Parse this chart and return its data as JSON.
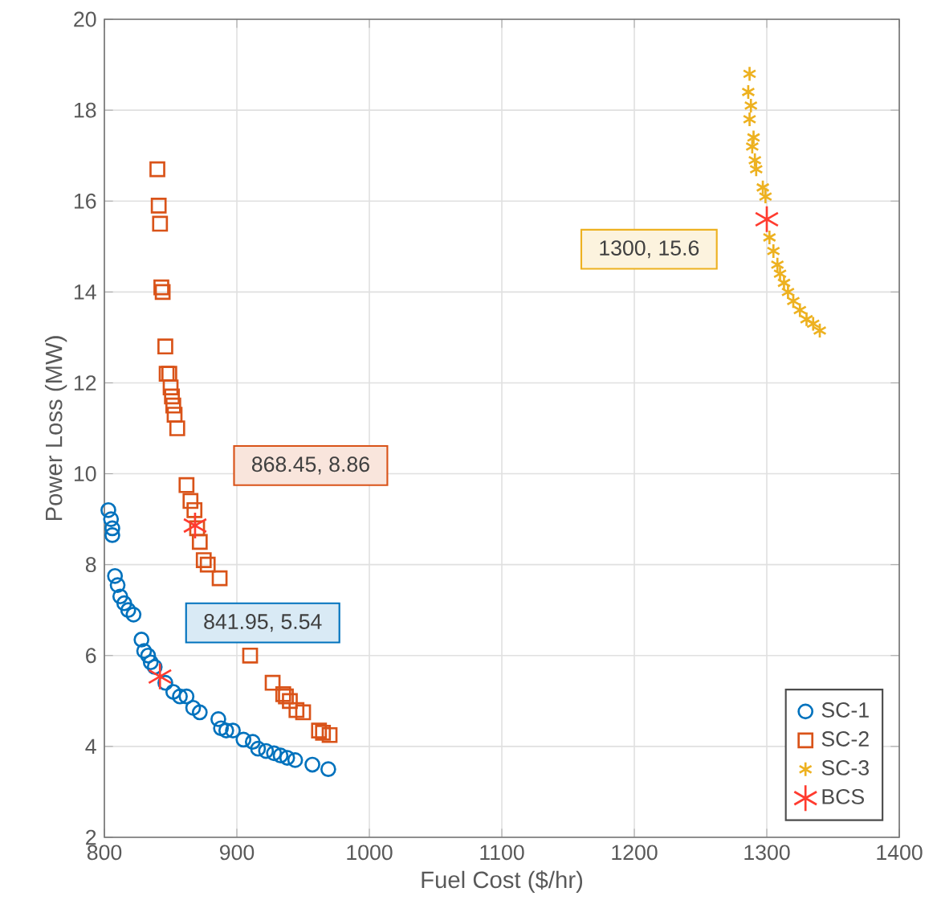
{
  "chart_data": {
    "type": "scatter",
    "xlabel": "Fuel Cost ($/hr)",
    "ylabel": "Power Loss (MW)",
    "xlim": [
      800,
      1400
    ],
    "ylim": [
      2,
      20
    ],
    "xticks": [
      800,
      900,
      1000,
      1100,
      1200,
      1300,
      1400
    ],
    "yticks": [
      2,
      4,
      6,
      8,
      10,
      12,
      14,
      16,
      18,
      20
    ],
    "grid": true,
    "legend": "bottom right",
    "series": [
      {
        "name": "SC-1",
        "color": "#0072bd",
        "marker": "circle",
        "x": [
          803,
          805,
          806,
          806,
          808,
          810,
          812,
          815,
          818,
          822,
          828,
          830,
          833,
          835,
          838,
          846,
          852,
          857,
          862,
          867,
          872,
          886,
          888,
          892,
          897,
          905,
          912,
          916,
          922,
          928,
          933,
          938,
          944,
          957,
          969
        ],
        "values": [
          9.2,
          9.0,
          8.8,
          8.65,
          7.75,
          7.55,
          7.3,
          7.15,
          7.0,
          6.9,
          6.35,
          6.1,
          6.0,
          5.85,
          5.75,
          5.4,
          5.2,
          5.1,
          5.1,
          4.85,
          4.75,
          4.6,
          4.4,
          4.35,
          4.35,
          4.15,
          4.1,
          3.95,
          3.9,
          3.85,
          3.8,
          3.75,
          3.7,
          3.6,
          3.5
        ]
      },
      {
        "name": "SC-2",
        "color": "#d95319",
        "marker": "square",
        "x": [
          840,
          841,
          842,
          843,
          844,
          846,
          847,
          849,
          850,
          851,
          852,
          853,
          855,
          862,
          865,
          868,
          870,
          872,
          875,
          878,
          887,
          910,
          927,
          935,
          937,
          940,
          945,
          950,
          962,
          965,
          970
        ],
        "values": [
          16.7,
          15.9,
          15.5,
          14.1,
          14.0,
          12.8,
          12.2,
          12.2,
          11.9,
          11.7,
          11.5,
          11.3,
          11.0,
          9.75,
          9.4,
          9.2,
          8.8,
          8.5,
          8.1,
          8.0,
          7.7,
          6.0,
          5.4,
          5.15,
          5.1,
          5.0,
          4.8,
          4.75,
          4.35,
          4.3,
          4.25
        ]
      },
      {
        "name": "SC-3",
        "color": "#edb120",
        "marker": "cross",
        "x": [
          1287,
          1286,
          1288,
          1287,
          1290,
          1289,
          1291,
          1292,
          1297,
          1299,
          1302,
          1305,
          1308,
          1310,
          1313,
          1316,
          1320,
          1325,
          1330,
          1335,
          1340
        ],
        "values": [
          18.8,
          18.4,
          18.1,
          17.8,
          17.4,
          17.2,
          16.9,
          16.7,
          16.3,
          16.1,
          15.2,
          14.9,
          14.6,
          14.4,
          14.2,
          14.0,
          13.8,
          13.6,
          13.4,
          13.3,
          13.15
        ]
      },
      {
        "name": "BCS",
        "color": "#ff3b2f",
        "marker": "cross",
        "x": [
          841.95,
          868.45,
          1300
        ],
        "values": [
          5.54,
          8.86,
          15.6
        ]
      }
    ],
    "annotations": [
      "841.95, 5.54",
      "868.45, 8.86",
      "1300, 15.6"
    ]
  }
}
